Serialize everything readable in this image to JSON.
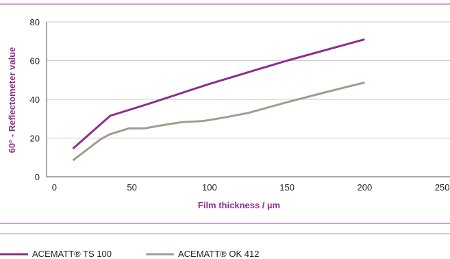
{
  "chart_data": {
    "type": "line",
    "xlabel": "Film thickness / µm",
    "ylabel": "60° - Reflectometer value",
    "xlim": [
      -5,
      255
    ],
    "ylim": [
      0,
      80
    ],
    "xticks": [
      0,
      50,
      100,
      150,
      200,
      250
    ],
    "yticks": [
      0,
      20,
      40,
      60,
      80
    ],
    "grid": "horizontal",
    "legend_position": "bottom-left",
    "series": [
      {
        "name": "ACEMATT® TS 100",
        "color": "#8e2d8e",
        "x": [
          12,
          36,
          60,
          100,
          125,
          150,
          200
        ],
        "y": [
          14.5,
          31.5,
          37.5,
          48,
          54,
          60,
          71
        ]
      },
      {
        "name": "ACEMATT® OK 412",
        "color": "#a49b90",
        "x": [
          12,
          30,
          36,
          48,
          58,
          70,
          82,
          96,
          110,
          125,
          135,
          150,
          175,
          200
        ],
        "y": [
          8.5,
          19.5,
          22,
          25,
          25,
          26.7,
          28.2,
          28.8,
          30.7,
          33,
          35.2,
          38.5,
          43.7,
          48.7
        ]
      }
    ]
  }
}
